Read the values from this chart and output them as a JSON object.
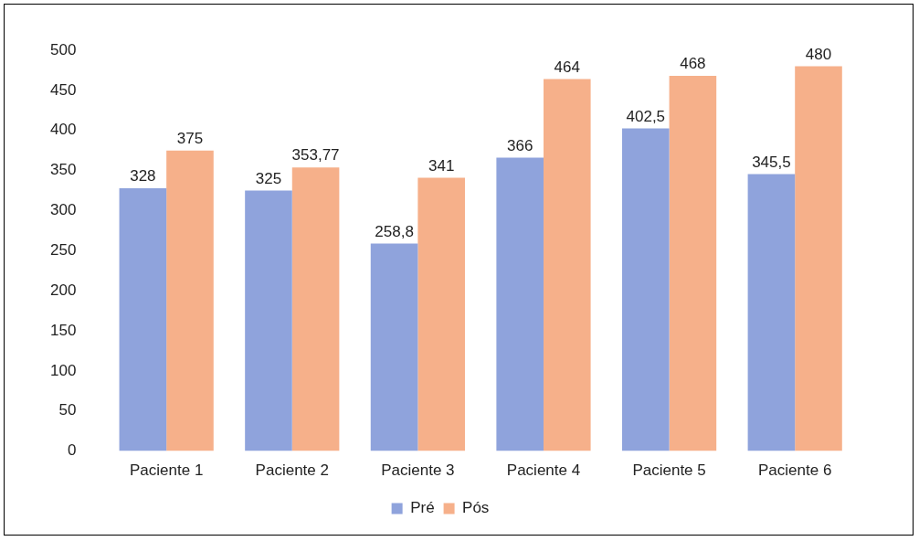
{
  "chart_data": {
    "type": "bar",
    "categories": [
      "Paciente 1",
      "Paciente 2",
      "Paciente 3",
      "Paciente 4",
      "Paciente 5",
      "Paciente 6"
    ],
    "series": [
      {
        "name": "Pré",
        "color": "#8fa3dc",
        "values": [
          328,
          325,
          258.8,
          366,
          402.5,
          345.5
        ],
        "value_labels": [
          "328",
          "325",
          "258,8",
          "366",
          "402,5",
          "345,5"
        ]
      },
      {
        "name": "Pós",
        "color": "#f6b08a",
        "values": [
          375,
          353.77,
          341,
          464,
          468,
          480
        ],
        "value_labels": [
          "375",
          "353,77",
          "341",
          "464",
          "468",
          "480"
        ]
      }
    ],
    "ylim": [
      0,
      500
    ],
    "yticks": [
      0,
      50,
      100,
      150,
      200,
      250,
      300,
      350,
      400,
      450,
      500
    ],
    "grid": false,
    "legend": "bottom"
  }
}
